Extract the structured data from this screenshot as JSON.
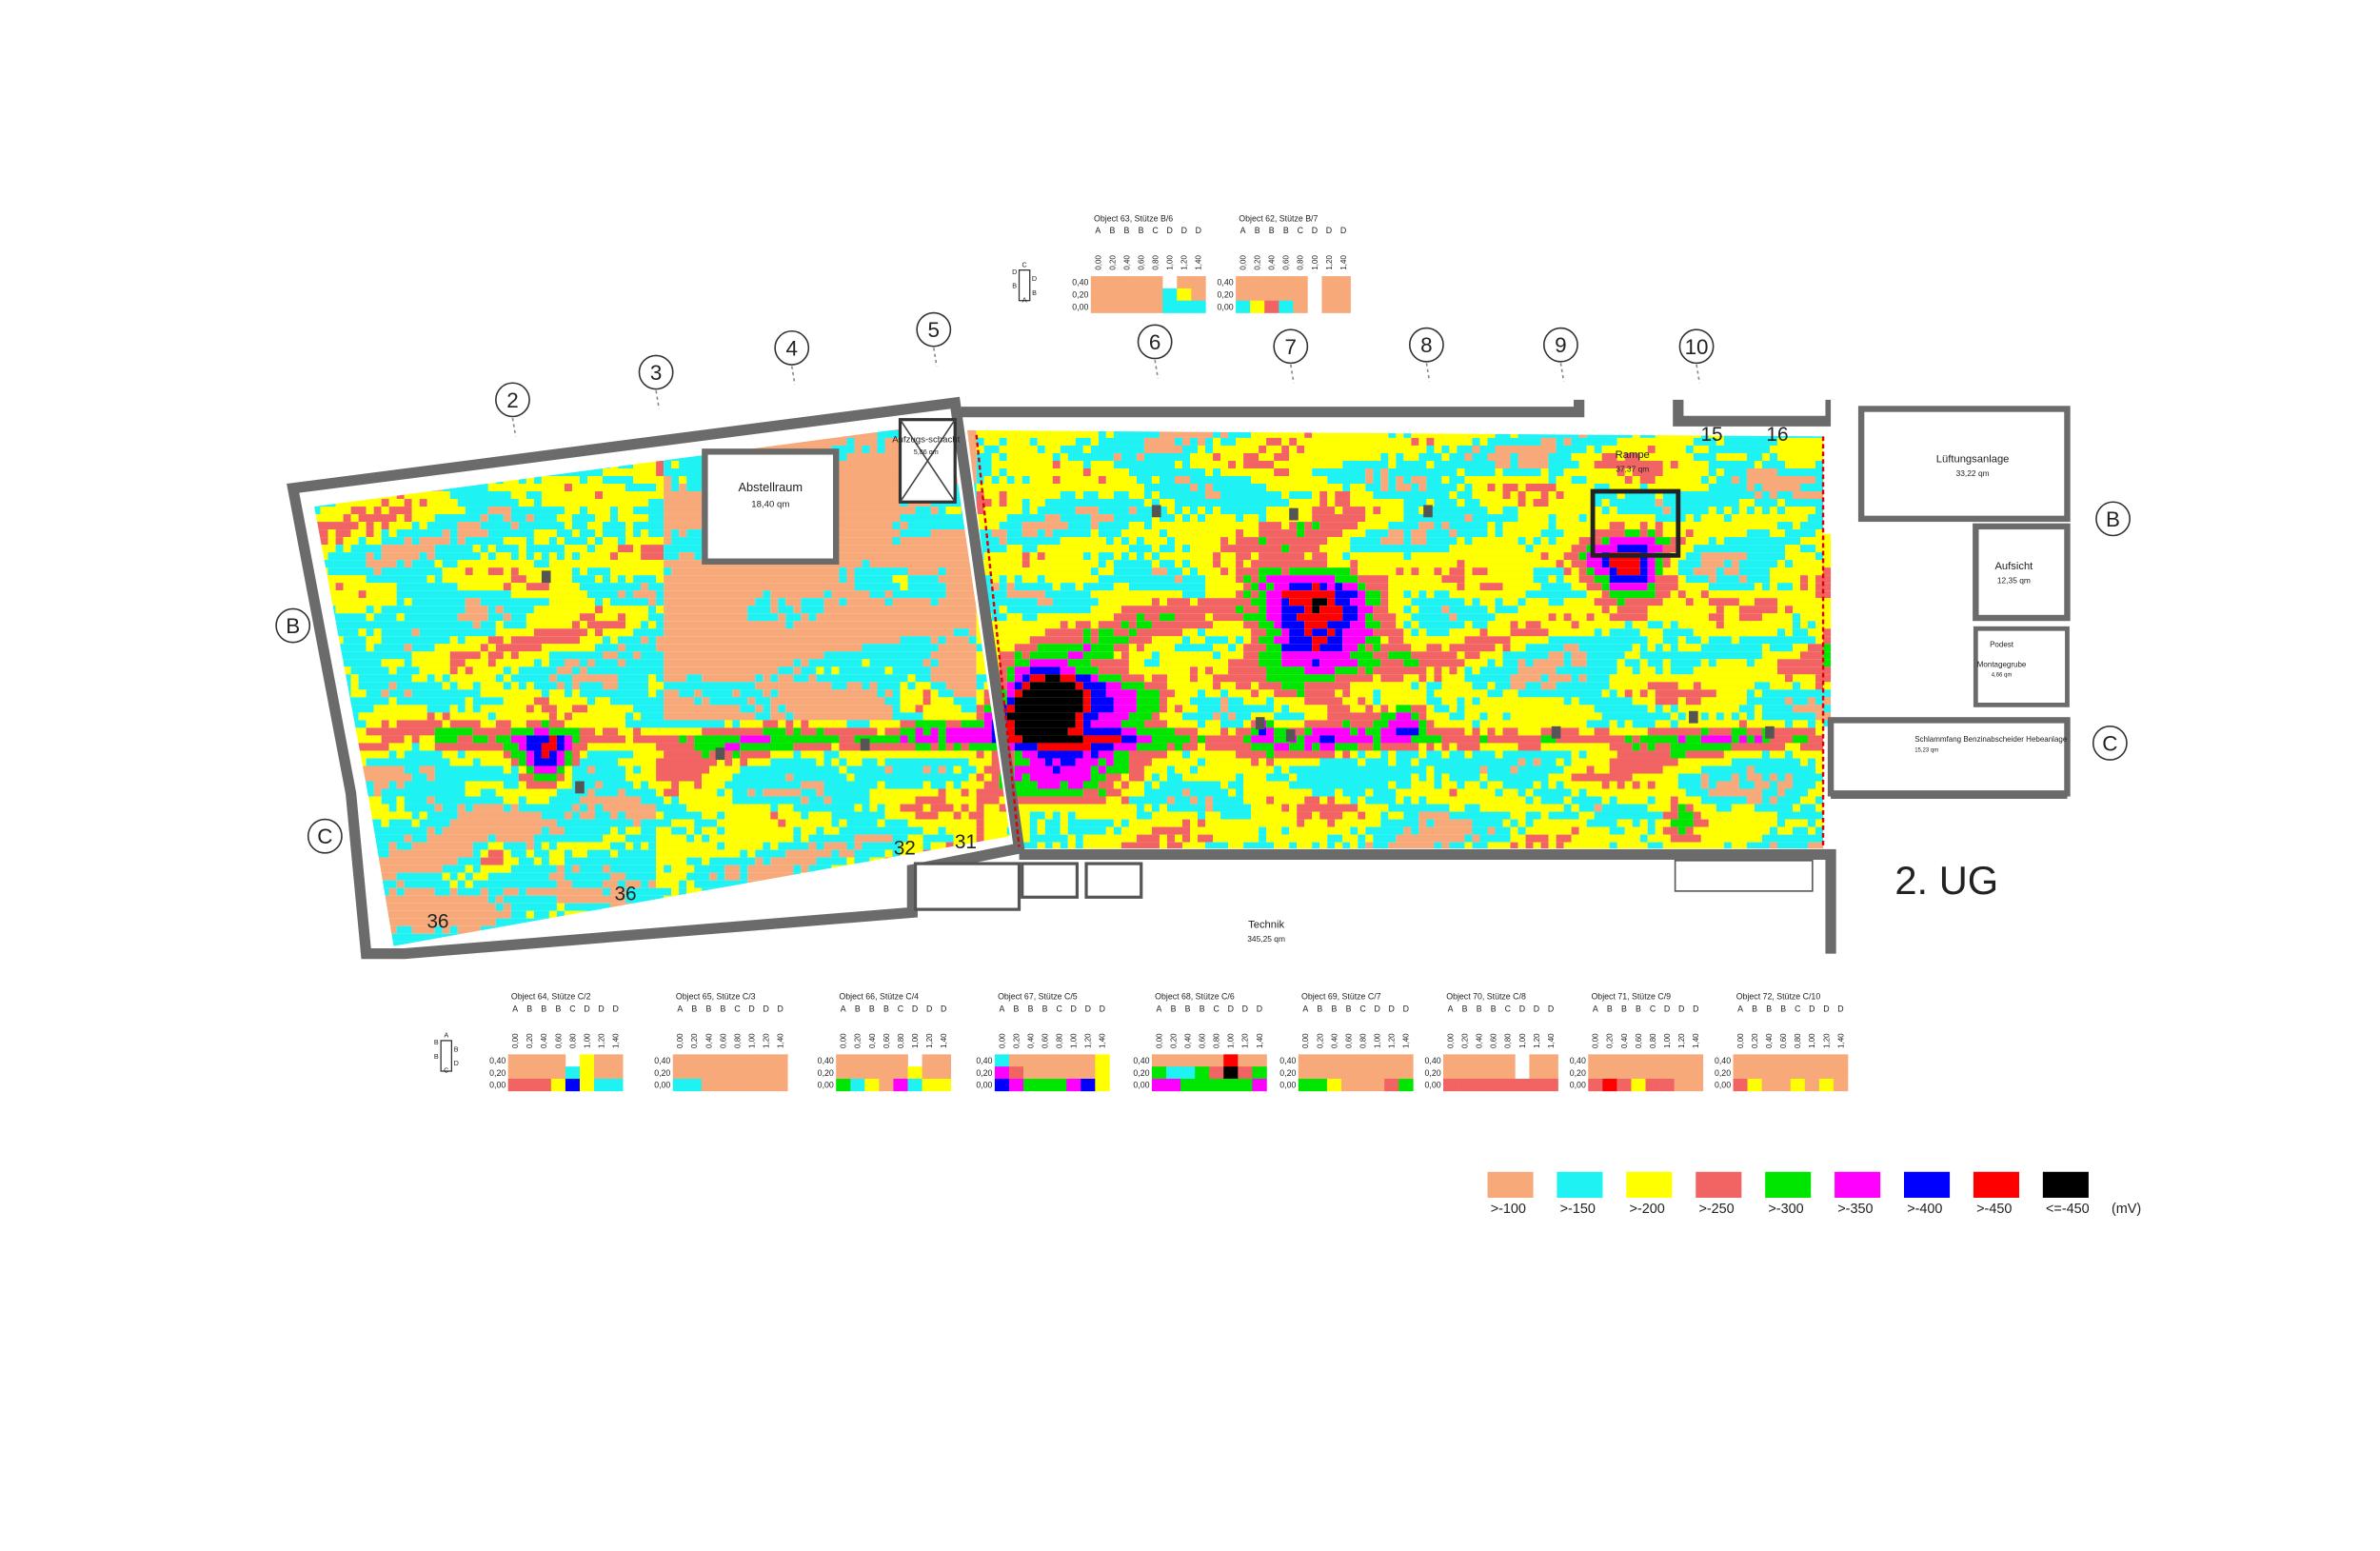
{
  "title": "2. UG",
  "grid_columns": [
    "2",
    "3",
    "4",
    "5",
    "6",
    "7",
    "8",
    "9",
    "10"
  ],
  "grid_rows": [
    "B",
    "C"
  ],
  "rooms": [
    {
      "name": "Abstellraum",
      "area": "18,40 qm"
    },
    {
      "name": "Aufzugs-schacht",
      "area": "5,86 qm"
    },
    {
      "name": "Rampe",
      "area": "37,37 qm"
    },
    {
      "name": "Lüftungsanlage",
      "area": "33,22 qm"
    },
    {
      "name": "Aufsicht",
      "area": "12,35 qm"
    },
    {
      "name": "Podest"
    },
    {
      "name": "Montagegrube",
      "area": "4,66 qm"
    },
    {
      "name": "Schlammfang Benzinabscheider Hebeanlage",
      "area": "15,23 qm"
    },
    {
      "name": "Technik",
      "area": "345,25 qm"
    }
  ],
  "room_numbers": [
    "15",
    "16",
    "32",
    "31",
    "36",
    "36"
  ],
  "icon_labels_top": [
    "C",
    "D",
    "D",
    "B",
    "B",
    "A"
  ],
  "icon_labels_bottom": [
    "A",
    "B",
    "B",
    "B",
    "D",
    "C"
  ],
  "columns": [
    "A",
    "B",
    "B",
    "B",
    "C",
    "D",
    "D",
    "D"
  ],
  "positions": [
    "0,00",
    "0,20",
    "0,40",
    "0,60",
    "0,80",
    "1,00",
    "1,20",
    "1,40"
  ],
  "depths": [
    "0,40",
    "0,20",
    "0,00"
  ],
  "objects": [
    {
      "title": "Object 63, Stütze B/6",
      "cells": [
        [
          0,
          0,
          0,
          0,
          0,
          null,
          0,
          0
        ],
        [
          0,
          0,
          0,
          0,
          0,
          1,
          2,
          0
        ],
        [
          0,
          0,
          0,
          0,
          0,
          1,
          1,
          1
        ]
      ]
    },
    {
      "title": "Object 62, Stütze B/7",
      "cells": [
        [
          0,
          0,
          0,
          0,
          0,
          null,
          0,
          0
        ],
        [
          0,
          0,
          0,
          0,
          0,
          null,
          0,
          0
        ],
        [
          1,
          2,
          3,
          1,
          0,
          null,
          0,
          0
        ]
      ]
    },
    {
      "title": "Object 64, Stütze C/2",
      "cells": [
        [
          0,
          0,
          0,
          0,
          null,
          2,
          0,
          0
        ],
        [
          0,
          0,
          0,
          0,
          1,
          2,
          0,
          0
        ],
        [
          3,
          3,
          3,
          2,
          6,
          2,
          1,
          1
        ]
      ]
    },
    {
      "title": "Object 65, Stütze C/3",
      "cells": [
        [
          0,
          0,
          0,
          0,
          0,
          0,
          0,
          0
        ],
        [
          0,
          0,
          0,
          0,
          0,
          0,
          0,
          0
        ],
        [
          1,
          1,
          0,
          0,
          0,
          0,
          0,
          0
        ]
      ]
    },
    {
      "title": "Object 66, Stütze C/4",
      "cells": [
        [
          0,
          0,
          0,
          0,
          0,
          null,
          0,
          0
        ],
        [
          0,
          0,
          0,
          0,
          0,
          2,
          0,
          0
        ],
        [
          4,
          1,
          2,
          0,
          5,
          1,
          2,
          2
        ]
      ]
    },
    {
      "title": "Object 67, Stütze C/5",
      "cells": [
        [
          1,
          0,
          0,
          0,
          0,
          0,
          0,
          2
        ],
        [
          5,
          3,
          0,
          0,
          0,
          0,
          0,
          2
        ],
        [
          6,
          5,
          4,
          4,
          4,
          5,
          6,
          2
        ]
      ]
    },
    {
      "title": "Object 68, Stütze C/6",
      "cells": [
        [
          0,
          0,
          0,
          0,
          0,
          7,
          0,
          0
        ],
        [
          4,
          1,
          1,
          4,
          3,
          8,
          3,
          4
        ],
        [
          5,
          5,
          4,
          4,
          4,
          4,
          4,
          5
        ]
      ]
    },
    {
      "title": "Object 69, Stütze C/7",
      "cells": [
        [
          0,
          0,
          0,
          0,
          0,
          0,
          0,
          0
        ],
        [
          0,
          0,
          0,
          0,
          0,
          0,
          0,
          0
        ],
        [
          4,
          4,
          2,
          0,
          0,
          0,
          3,
          4
        ]
      ]
    },
    {
      "title": "Object 70, Stütze C/8",
      "cells": [
        [
          0,
          0,
          0,
          0,
          0,
          null,
          0,
          0
        ],
        [
          0,
          0,
          0,
          0,
          0,
          null,
          0,
          0
        ],
        [
          3,
          3,
          3,
          3,
          3,
          3,
          3,
          3
        ]
      ]
    },
    {
      "title": "Object 71, Stütze C/9",
      "cells": [
        [
          0,
          0,
          0,
          0,
          0,
          0,
          0,
          0
        ],
        [
          0,
          0,
          0,
          0,
          0,
          0,
          0,
          0
        ],
        [
          3,
          7,
          3,
          2,
          3,
          3,
          0,
          0
        ]
      ]
    },
    {
      "title": "Object 72, Stütze C/10",
      "cells": [
        [
          0,
          0,
          0,
          0,
          0,
          0,
          0,
          0
        ],
        [
          0,
          0,
          0,
          0,
          0,
          0,
          0,
          0
        ],
        [
          3,
          2,
          0,
          0,
          2,
          0,
          2,
          0
        ]
      ]
    }
  ],
  "legend": {
    "unit": "(mV)",
    "items": [
      {
        "label": ">-100",
        "color": "#f7a97a"
      },
      {
        "label": ">-150",
        "color": "#1ef2f2"
      },
      {
        "label": ">-200",
        "color": "#ffff00"
      },
      {
        "label": ">-250",
        "color": "#f26464"
      },
      {
        "label": ">-300",
        "color": "#00e600"
      },
      {
        "label": ">-350",
        "color": "#ff00ff"
      },
      {
        "label": ">-400",
        "color": "#0000ff"
      },
      {
        "label": ">-450",
        "color": "#ff0000"
      },
      {
        "label": "<=-450",
        "color": "#000000"
      }
    ]
  }
}
